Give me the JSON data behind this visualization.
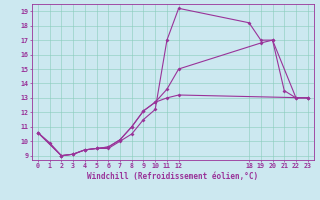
{
  "xlabel": "Windchill (Refroidissement éolien,°C)",
  "bg_color": "#cce8f0",
  "grid_color": "#88ccbb",
  "line_color": "#993399",
  "xlim": [
    -0.5,
    23.5
  ],
  "ylim": [
    8.7,
    19.5
  ],
  "yticks": [
    9,
    10,
    11,
    12,
    13,
    14,
    15,
    16,
    17,
    18,
    19
  ],
  "xtick_vals": [
    0,
    1,
    2,
    3,
    4,
    5,
    6,
    7,
    8,
    9,
    10,
    11,
    12,
    18,
    19,
    20,
    21,
    22,
    23
  ],
  "xtick_labels": [
    "0",
    "1",
    "2",
    "3",
    "4",
    "5",
    "6",
    "7",
    "8",
    "9",
    "10",
    "11",
    "12",
    "18",
    "19",
    "20",
    "21",
    "22",
    "23"
  ],
  "line1_x": [
    0,
    1,
    2,
    3,
    4,
    5,
    6,
    7,
    8,
    9,
    10,
    11,
    12,
    18,
    19,
    20,
    21,
    22,
    23
  ],
  "line1_y": [
    10.6,
    9.9,
    9.0,
    9.1,
    9.4,
    9.5,
    9.5,
    10.0,
    10.5,
    11.5,
    12.2,
    17.0,
    19.2,
    18.2,
    17.0,
    17.0,
    13.5,
    13.0,
    13.0
  ],
  "line2_x": [
    0,
    2,
    3,
    4,
    5,
    6,
    7,
    8,
    9,
    10,
    11,
    12,
    19,
    20,
    22,
    23
  ],
  "line2_y": [
    10.6,
    9.0,
    9.1,
    9.4,
    9.5,
    9.6,
    10.1,
    11.0,
    12.1,
    12.7,
    13.6,
    15.0,
    16.8,
    17.0,
    13.0,
    13.0
  ],
  "line3_x": [
    0,
    2,
    3,
    4,
    5,
    6,
    7,
    8,
    9,
    10,
    11,
    12,
    23
  ],
  "line3_y": [
    10.6,
    9.0,
    9.1,
    9.4,
    9.5,
    9.6,
    10.1,
    11.0,
    12.1,
    12.7,
    13.0,
    13.2,
    13.0
  ],
  "xlabel_fontsize": 5.5,
  "tick_fontsize": 4.8,
  "line_width": 0.8,
  "marker_size": 2.0
}
